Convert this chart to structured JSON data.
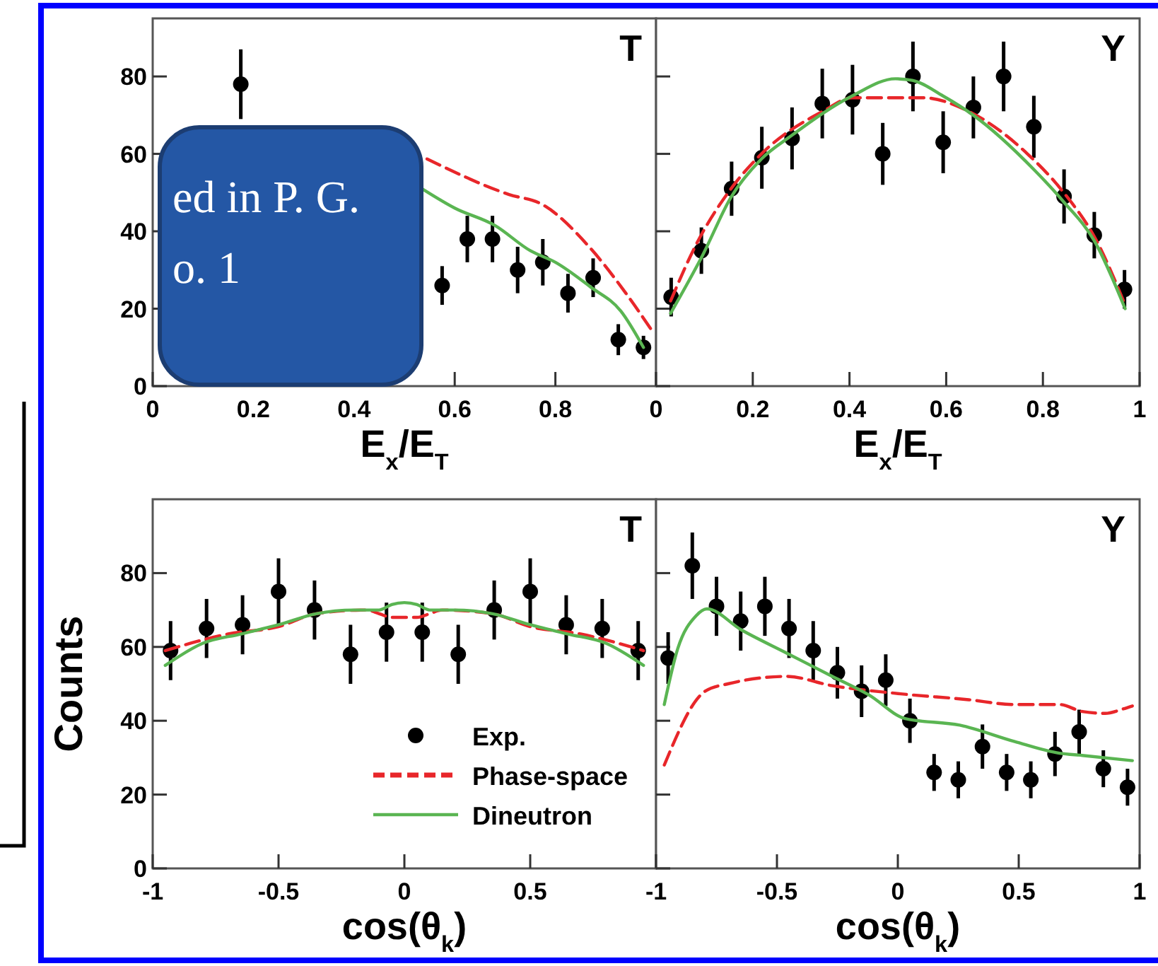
{
  "chart_data": [
    {
      "type": "scatter",
      "title": "T",
      "xlabel": "E$_{x}$/E$_{T}$",
      "xlim": [
        0,
        1
      ],
      "ylim": [
        0,
        95
      ],
      "xticks": [
        0,
        0.2,
        0.4,
        0.6,
        0.8,
        {
          "value": 1,
          "label": null
        }
      ],
      "yticks": [
        0,
        20,
        40,
        60,
        80
      ],
      "annotations": [
        "ed in P. G.",
        "o. 1"
      ],
      "series": [
        {
          "color": "#000000",
          "marker": "circle",
          "x": [
            0.175,
            0.575,
            0.625,
            0.675,
            0.725,
            0.775,
            0.825,
            0.875,
            0.925,
            0.975
          ],
          "values": [
            78,
            26,
            38,
            38,
            30,
            32,
            24,
            28,
            12,
            10
          ],
          "errors": [
            9,
            5,
            6,
            6,
            6,
            6,
            5,
            5,
            4,
            3
          ]
        },
        {
          "type": "line",
          "color": "#e8262a",
          "line_style": "dashed",
          "x": [
            0.545,
            0.708,
            0.773,
            0.867,
            0.94,
            0.99
          ],
          "values": [
            58.7,
            49.5,
            47,
            36,
            24,
            14.7
          ]
        },
        {
          "type": "line",
          "color": "#5ab552",
          "line_style": "solid",
          "x": [
            0.535,
            0.6,
            0.68,
            0.75,
            0.8,
            0.87,
            0.93,
            0.975
          ],
          "values": [
            51,
            46,
            41.5,
            35,
            32,
            25.6,
            19.4,
            10
          ]
        }
      ]
    },
    {
      "type": "scatter",
      "title": "Y",
      "xlabel": "E$_{x}$/E$_{T}$",
      "xlim": [
        0,
        1
      ],
      "ylim": [
        0,
        95
      ],
      "tick_labels": "x",
      "xticks": [
        0,
        0.2,
        0.4,
        0.6,
        0.8,
        1
      ],
      "yticks": [
        0,
        20,
        40,
        60,
        80
      ],
      "series": [
        {
          "color": "#000000",
          "marker": "circle",
          "x": [
            0.03125,
            0.09375,
            0.15625,
            0.21875,
            0.28125,
            0.34375,
            0.40625,
            0.46875,
            0.53125,
            0.59375,
            0.65625,
            0.71875,
            0.78125,
            0.84375,
            0.90625,
            0.96875
          ],
          "values": [
            23,
            35,
            51,
            59,
            64,
            73,
            74,
            60,
            80,
            63,
            72,
            80,
            67,
            49,
            39,
            25
          ],
          "errors": [
            5,
            6,
            7,
            8,
            8,
            9,
            9,
            8,
            9,
            8,
            8,
            9,
            8,
            7,
            6,
            5
          ]
        },
        {
          "type": "line",
          "color": "#e8262a",
          "line_style": "dashed",
          "x": [
            0.03,
            0.083,
            0.155,
            0.218,
            0.345,
            0.406,
            0.552,
            0.646,
            0.768,
            0.843,
            0.909,
            0.97
          ],
          "values": [
            22,
            36.6,
            51,
            60,
            71,
            74.5,
            74.5,
            71,
            60,
            50,
            38,
            21
          ]
        },
        {
          "type": "line",
          "color": "#5ab552",
          "line_style": "solid",
          "x": [
            0.03,
            0.097,
            0.155,
            0.218,
            0.28,
            0.406,
            0.495,
            0.53,
            0.593,
            0.656,
            0.781,
            0.843,
            0.906,
            0.97
          ],
          "values": [
            18.8,
            34,
            48.8,
            58.7,
            64.7,
            75,
            79.4,
            79,
            75,
            70,
            56,
            47.6,
            37.6,
            20
          ]
        }
      ]
    },
    {
      "type": "scatter",
      "title": "T",
      "xlabel": "cos(θ$_{k}$)",
      "ylabel": "Counts",
      "xlim": [
        -1,
        1
      ],
      "ylim": [
        0,
        100
      ],
      "legend": "bottom right",
      "xticks": [
        -1,
        -0.5,
        0,
        0.5,
        {
          "value": 1,
          "label": null
        }
      ],
      "yticks": [
        0,
        20,
        40,
        60,
        80
      ],
      "series": [
        {
          "name": "Exp.",
          "color": "#000000",
          "marker": "circle",
          "x": [
            -0.929,
            -0.786,
            -0.643,
            -0.5,
            -0.357,
            -0.214,
            -0.071,
            0.071,
            0.214,
            0.357,
            0.5,
            0.643,
            0.786,
            0.929
          ],
          "values": [
            59,
            65,
            66,
            75,
            70,
            58,
            64,
            64,
            58,
            70,
            75,
            66,
            65,
            59
          ],
          "errors": [
            8,
            8,
            8,
            9,
            8,
            8,
            8,
            8,
            8,
            8,
            9,
            8,
            8,
            8
          ]
        },
        {
          "type": "line",
          "name": "Phase-space",
          "color": "#e8262a",
          "line_style": "dashed",
          "x": [
            -0.95,
            -0.7,
            -0.5,
            -0.35,
            -0.15,
            -0.1,
            -0.05,
            0,
            0.05,
            0.1,
            0.15,
            0.35,
            0.5,
            0.7,
            0.95
          ],
          "values": [
            59,
            63.5,
            65.5,
            69,
            70,
            69,
            68,
            68,
            68,
            69,
            70,
            69,
            65.5,
            63.5,
            59
          ]
        },
        {
          "type": "line",
          "name": "Dineutron",
          "color": "#5ab552",
          "line_style": "solid",
          "x": [
            -0.95,
            -0.8,
            -0.65,
            -0.5,
            -0.35,
            -0.2,
            -0.1,
            -0.05,
            0,
            0.05,
            0.1,
            0.2,
            0.35,
            0.5,
            0.65,
            0.8,
            0.95
          ],
          "values": [
            55,
            61,
            63.5,
            66,
            69,
            70,
            70,
            71.5,
            72,
            71.5,
            70,
            70,
            69,
            66,
            63.5,
            61,
            55
          ]
        }
      ]
    },
    {
      "type": "scatter",
      "title": "Y",
      "xlabel": "cos(θ$_{k}$)",
      "xlim": [
        -1,
        1
      ],
      "ylim": [
        0,
        100
      ],
      "tick_labels": "x",
      "xticks": [
        -1,
        -0.5,
        0,
        0.5,
        1
      ],
      "yticks": [
        0,
        20,
        40,
        60,
        80
      ],
      "series": [
        {
          "color": "#000000",
          "marker": "circle",
          "x": [
            -0.95,
            -0.85,
            -0.75,
            -0.65,
            -0.55,
            -0.45,
            -0.35,
            -0.25,
            -0.15,
            -0.05,
            0.05,
            0.15,
            0.25,
            0.35,
            0.45,
            0.55,
            0.65,
            0.75,
            0.85,
            0.95
          ],
          "values": [
            57,
            82,
            71,
            67,
            71,
            65,
            59,
            53,
            48,
            51,
            40,
            26,
            24,
            33,
            26,
            24,
            31,
            37,
            27,
            22
          ],
          "errors": [
            7,
            9,
            8,
            8,
            8,
            8,
            8,
            7,
            7,
            7,
            6,
            5,
            5,
            6,
            5,
            5,
            6,
            6,
            5,
            5
          ]
        },
        {
          "type": "line",
          "color": "#e8262a",
          "line_style": "dashed",
          "x": [
            -0.966,
            -0.797,
            -0.703,
            -0.459,
            -0.271,
            0.011,
            0.293,
            0.481,
            0.669,
            0.763,
            0.857,
            0.932,
            0.97
          ],
          "values": [
            28,
            48,
            50,
            52,
            49.5,
            47.3,
            45.7,
            44.4,
            44.4,
            42.5,
            42,
            43.2,
            44
          ]
        },
        {
          "type": "line",
          "color": "#5ab552",
          "line_style": "solid",
          "x": [
            -0.966,
            -0.91,
            -0.835,
            -0.79,
            -0.647,
            -0.459,
            -0.271,
            -0.12,
            0.03,
            0.256,
            0.481,
            0.669,
            0.763,
            0.97
          ],
          "values": [
            44.4,
            59.6,
            68.4,
            70.3,
            64.6,
            58.3,
            52,
            47,
            40.6,
            38.8,
            34.4,
            31.2,
            30.6,
            29.2
          ]
        }
      ]
    }
  ]
}
